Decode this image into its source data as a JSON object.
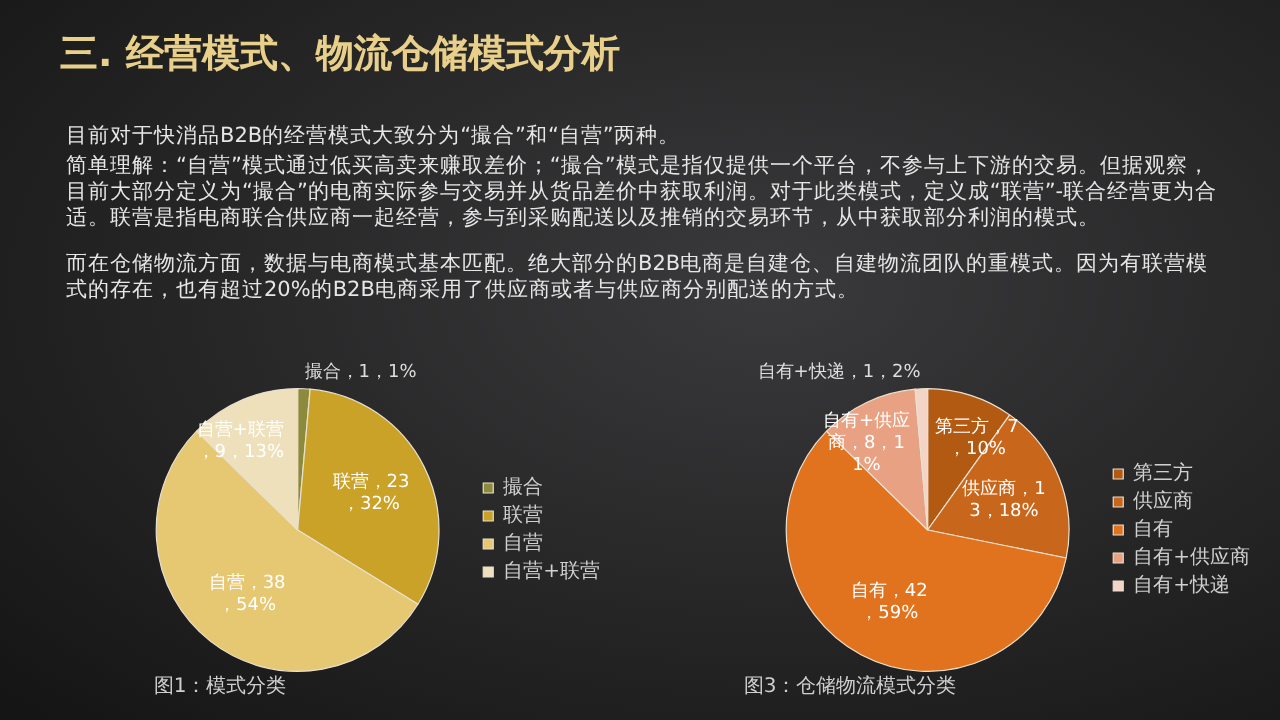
{
  "chart_data": [
    {
      "type": "pie",
      "title": "三. 经营模式、物流仓储模式分析",
      "annotations": [
        "目前对于快消品B2B的经营模式大致分为“撮合”和“自营”两种。",
        "简单理解：“自营”模式通过低买高卖来赚取差价；“撮合”模式是指仅提供一个平台，不参与上下游的交易。但据观察，目前大部分定义为“撮合”的电商实际参与交易并从货品差价中获取利润。对于此类模式，定义成“联营”-联合经营更为合适。联营是指电商联合供应商一起经营，参与到采购配送以及推销的交易环节，从中获取部分利润的模式。",
        "而在仓储物流方面，数据与电商模式基本匹配。绝大部分的B2B电商是自建仓、自建物流团队的重模式。因为有联营模式的存在，也有超过20%的B2B电商采用了供应商或者与供应商分别配送的方式。",
        "图1：模式分类"
      ],
      "categories": [
        "撮合",
        "联营",
        "自营",
        "自营+联营"
      ],
      "values": [
        1,
        23,
        38,
        9
      ],
      "colors": [
        "#8c8a3c",
        "#c9a227",
        "#e6c772",
        "#efe0bc"
      ],
      "value_labels": [
        "撮合，1，1%",
        "联营，23，32%",
        "自营，38，54%",
        "自营+联营，9，13%"
      ],
      "legend": "right"
    },
    {
      "type": "pie",
      "annotations": [
        "图3：仓储物流模式分类"
      ],
      "categories": [
        "第三方",
        "供应商",
        "自有",
        "自有+供应商",
        "自有+快递"
      ],
      "values": [
        7,
        13,
        42,
        8,
        1
      ],
      "colors": [
        "#b35a12",
        "#c8671c",
        "#e2731e",
        "#e8a283",
        "#f2d5c6"
      ],
      "value_labels": [
        "第三方，7，10%",
        "供应商，13，18%",
        "自有，42，59%",
        "自有+供应商，8，11%",
        "自有+快递，1，2%"
      ],
      "legend": "right"
    }
  ]
}
